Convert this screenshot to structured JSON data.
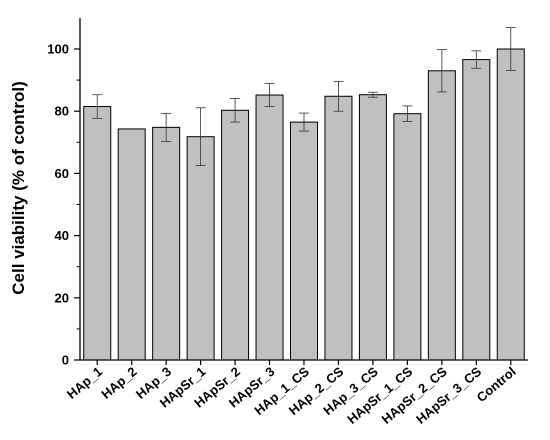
{
  "chart_data": {
    "type": "bar",
    "title": "",
    "xlabel": "",
    "ylabel": "Cell viability (% of control)",
    "ylim": [
      0,
      110
    ],
    "yticks": [
      0,
      20,
      40,
      60,
      80,
      100
    ],
    "grid": false,
    "legend": "none",
    "colors": {
      "bar_fill": "#c0c0c0",
      "bar_stroke": "#000000",
      "axis": "#000000"
    },
    "categories": [
      "HAp_1",
      "HAp_2",
      "HAp_3",
      "HApSr_1",
      "HApSr_2",
      "HApSr_3",
      "HAp_1_CS",
      "HAp_2_CS",
      "HAp_3_CS",
      "HApSr_1_CS",
      "HApSr_2_CS",
      "HApSr_3_CS",
      "Control"
    ],
    "series": [
      {
        "values": [
          81.5,
          74.3,
          74.8,
          71.8,
          80.3,
          85.2,
          76.5,
          84.8,
          85.3,
          79.2,
          93.0,
          96.6,
          100.0
        ],
        "errors": [
          3.8,
          0,
          4.5,
          9.3,
          3.8,
          3.7,
          2.9,
          4.8,
          0.8,
          2.5,
          6.8,
          2.8,
          6.9
        ]
      }
    ]
  }
}
